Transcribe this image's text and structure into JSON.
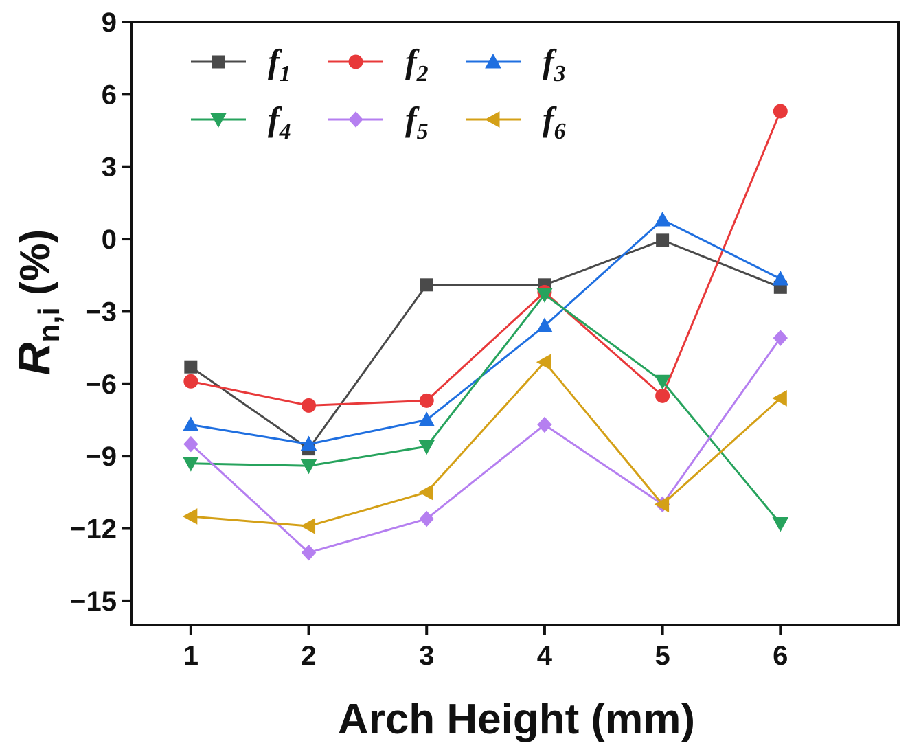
{
  "chart_data": {
    "type": "line",
    "title": "",
    "xlabel": "Arch Height (mm)",
    "ylabel": {
      "main": "R",
      "sub": "n,i",
      "suffix": " (%)"
    },
    "x": [
      1,
      2,
      3,
      4,
      5,
      6
    ],
    "xlim": [
      0.5,
      7.0
    ],
    "ylim": [
      -16,
      9
    ],
    "xticks": [
      "1",
      "2",
      "3",
      "4",
      "5",
      "6"
    ],
    "yticks": [
      9,
      6,
      3,
      0,
      -3,
      -6,
      -9,
      -12,
      -15
    ],
    "ytick_labels": [
      "9",
      "6",
      "3",
      "0",
      "−3",
      "−6",
      "−9",
      "−12",
      "−15"
    ],
    "legend_position": "top-left",
    "series": [
      {
        "name": "f",
        "sub": "1",
        "color": "#4a4a4a",
        "marker": "square",
        "values": [
          -5.3,
          -8.7,
          -1.9,
          -1.9,
          -0.05,
          -2.0
        ]
      },
      {
        "name": "f",
        "sub": "2",
        "color": "#e8393a",
        "marker": "circle",
        "values": [
          -5.9,
          -6.9,
          -6.7,
          -2.2,
          -6.5,
          5.3
        ]
      },
      {
        "name": "f",
        "sub": "3",
        "color": "#1f6fe0",
        "marker": "triangle-up",
        "values": [
          -7.7,
          -8.5,
          -7.5,
          -3.6,
          0.8,
          -1.65
        ]
      },
      {
        "name": "f",
        "sub": "4",
        "color": "#27a35d",
        "marker": "triangle-down",
        "values": [
          -9.3,
          -9.4,
          -8.6,
          -2.3,
          -5.9,
          -11.8
        ]
      },
      {
        "name": "f",
        "sub": "5",
        "color": "#b57ff0",
        "marker": "diamond",
        "values": [
          -8.5,
          -13.0,
          -11.6,
          -7.7,
          -11.0,
          -4.1
        ]
      },
      {
        "name": "f",
        "sub": "6",
        "color": "#d4a017",
        "marker": "triangle-left",
        "values": [
          -11.5,
          -11.9,
          -10.5,
          -5.1,
          -11.0,
          -6.6
        ]
      }
    ]
  }
}
